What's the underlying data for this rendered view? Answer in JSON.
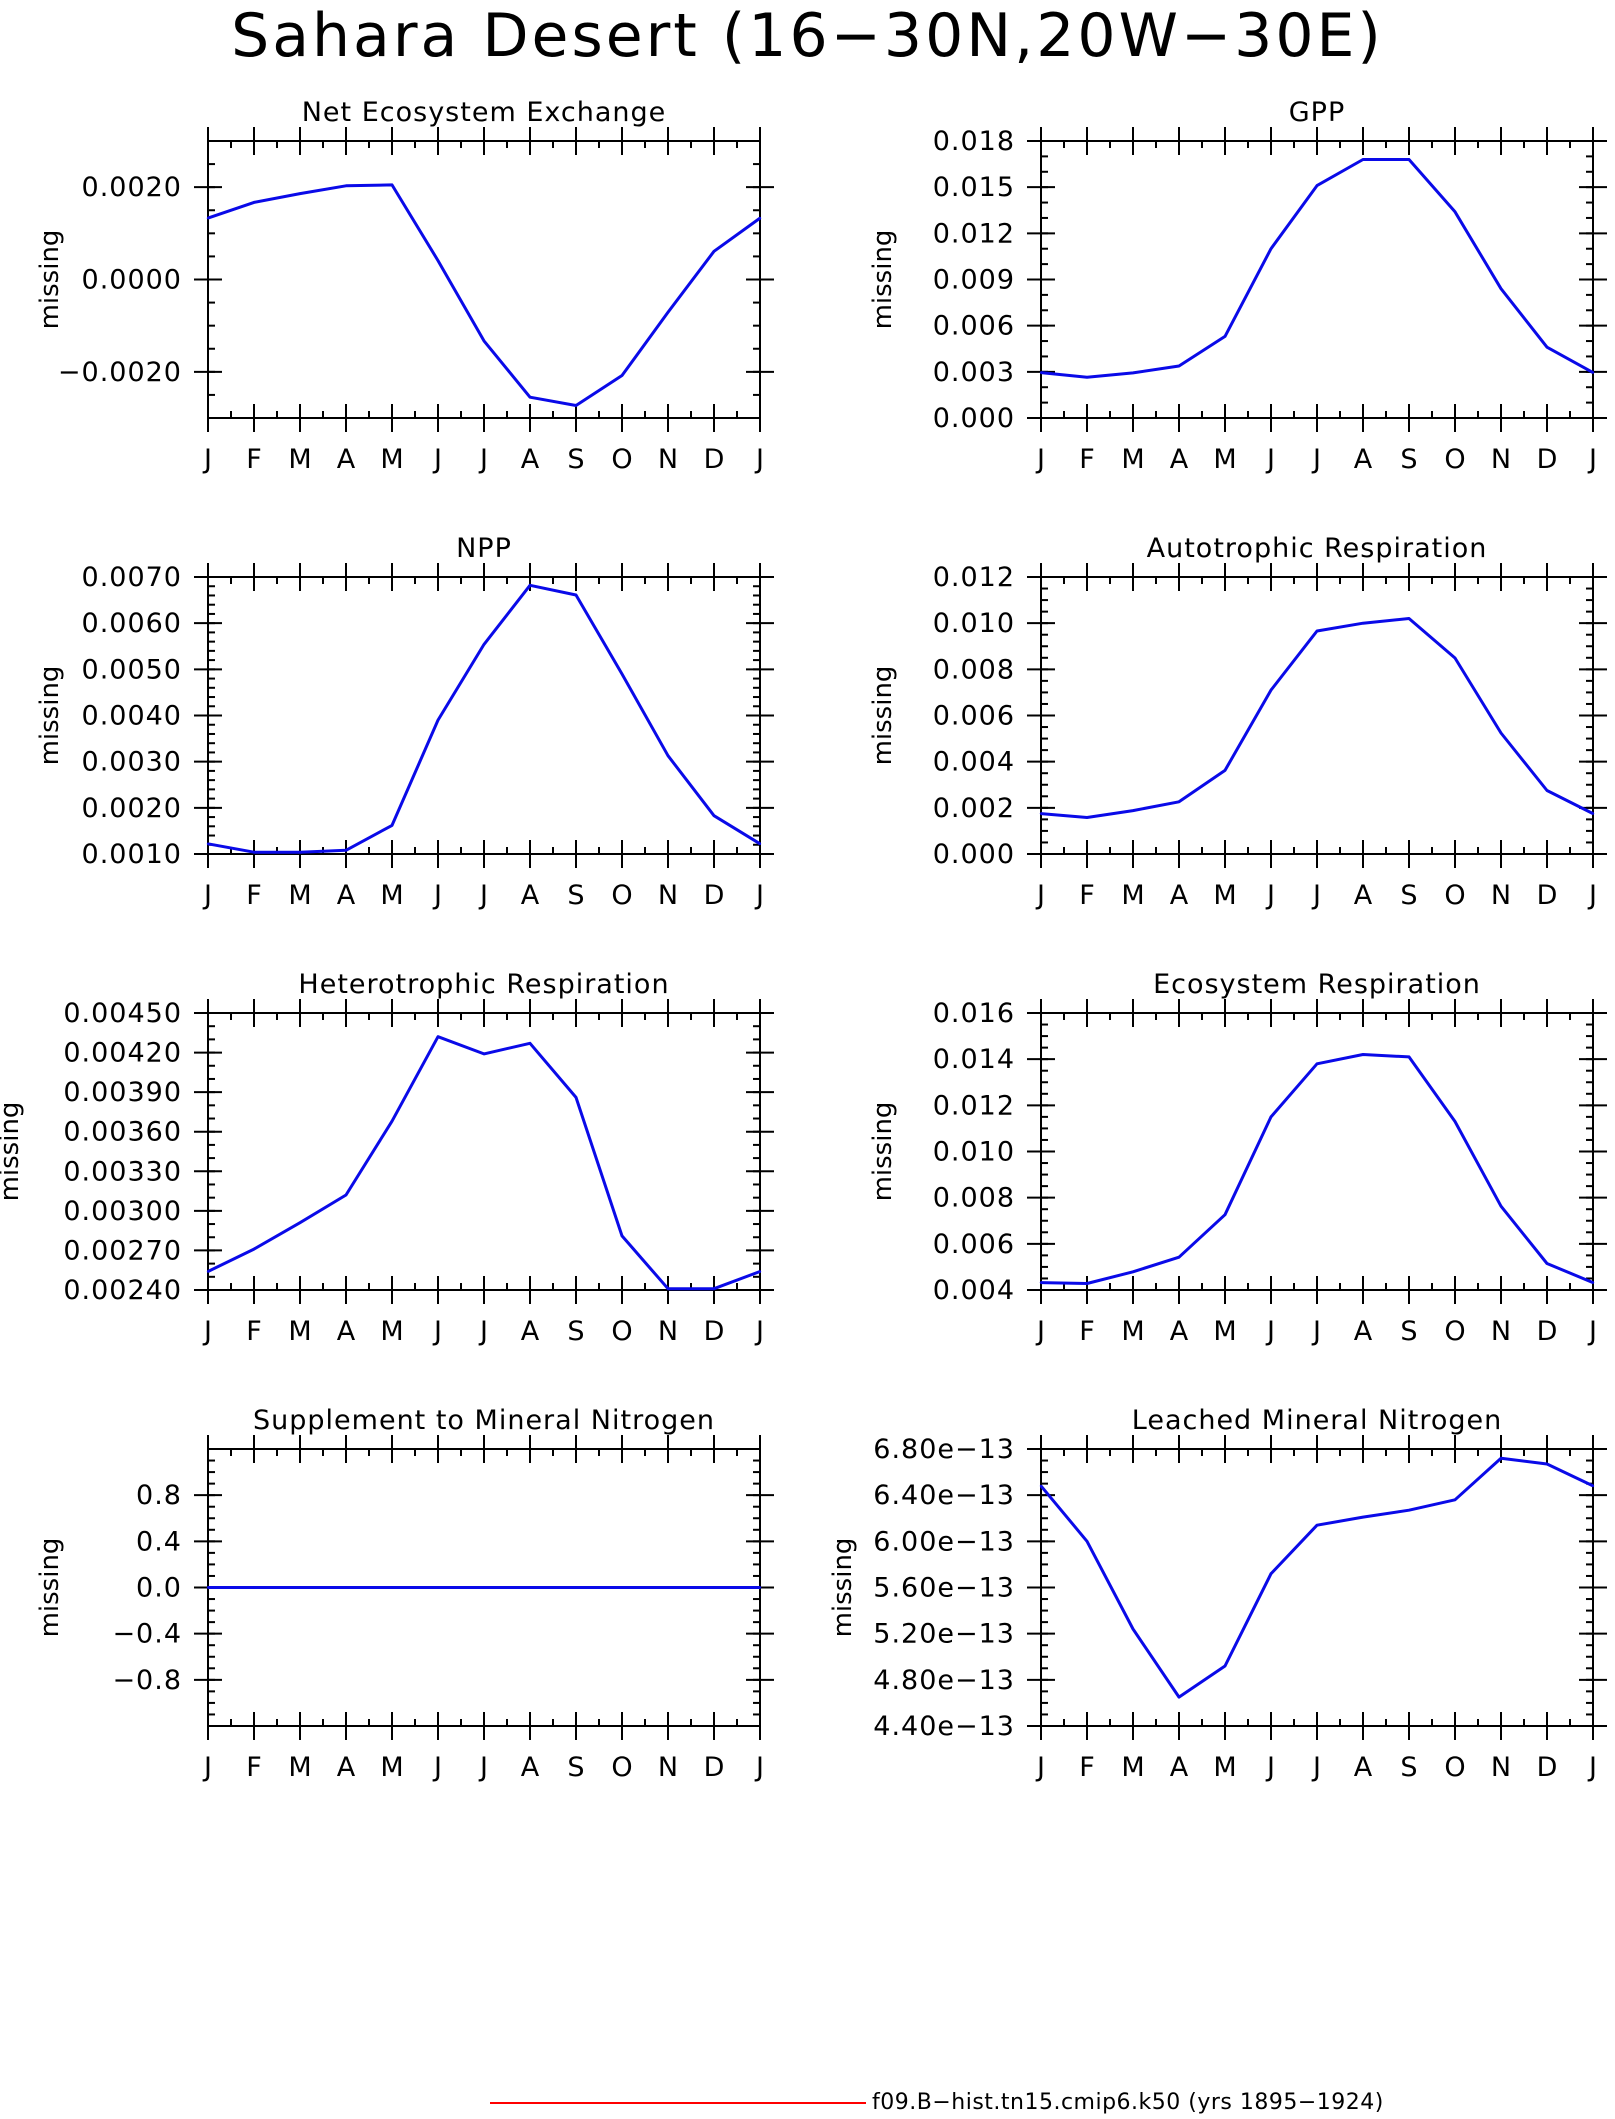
{
  "page_title": "Sahara Desert (16−30N,20W−30E)",
  "colors": {
    "series_line": "#0a0ae8",
    "legend_line": "#ff0000",
    "axis": "#000000"
  },
  "legend": {
    "label": "f09.B−hist.tn15.cmip6.k50 (yrs 1895−1924)"
  },
  "chart_data": [
    {
      "type": "line",
      "title": "Net Ecosystem Exchange",
      "ylabel": "missing",
      "x": [
        "J",
        "F",
        "M",
        "A",
        "M",
        "J",
        "J",
        "A",
        "S",
        "O",
        "N",
        "D",
        "J"
      ],
      "yticks": [
        "0.0020",
        "0.0000",
        "−0.0020"
      ],
      "ytick_values": [
        0.002,
        0.0,
        -0.002
      ],
      "ylim": [
        -0.003,
        0.003
      ],
      "minor_step": 0.0005,
      "values": [
        0.00133,
        0.00167,
        0.00186,
        0.00203,
        0.00205,
        0.00041,
        -0.00133,
        -0.00255,
        -0.00273,
        -0.00208,
        -0.00071,
        0.00061,
        0.00133
      ]
    },
    {
      "type": "line",
      "title": "GPP",
      "ylabel": "missing",
      "x": [
        "J",
        "F",
        "M",
        "A",
        "M",
        "J",
        "J",
        "A",
        "S",
        "O",
        "N",
        "D",
        "J"
      ],
      "yticks": [
        "0.018",
        "0.015",
        "0.012",
        "0.009",
        "0.006",
        "0.003",
        "0.000"
      ],
      "ytick_values": [
        0.018,
        0.015,
        0.012,
        0.009,
        0.006,
        0.003,
        0.0
      ],
      "ylim": [
        0.0,
        0.018
      ],
      "minor_step": 0.001,
      "values": [
        0.00295,
        0.00265,
        0.00293,
        0.00338,
        0.0053,
        0.011,
        0.0151,
        0.0168,
        0.0168,
        0.0134,
        0.0084,
        0.0046,
        0.00295
      ]
    },
    {
      "type": "line",
      "title": "NPP",
      "ylabel": "missing",
      "x": [
        "J",
        "F",
        "M",
        "A",
        "M",
        "J",
        "J",
        "A",
        "S",
        "O",
        "N",
        "D",
        "J"
      ],
      "yticks": [
        "0.0070",
        "0.0060",
        "0.0050",
        "0.0040",
        "0.0030",
        "0.0020",
        "0.0010"
      ],
      "ytick_values": [
        0.007,
        0.006,
        0.005,
        0.004,
        0.003,
        0.002,
        0.001
      ],
      "ylim": [
        0.001,
        0.007
      ],
      "minor_step": 0.0002,
      "values": [
        0.00122,
        0.00104,
        0.00104,
        0.00108,
        0.00162,
        0.0039,
        0.00554,
        0.00682,
        0.00661,
        0.0049,
        0.00313,
        0.00183,
        0.00122
      ]
    },
    {
      "type": "line",
      "title": "Autotrophic Respiration",
      "ylabel": "missing",
      "x": [
        "J",
        "F",
        "M",
        "A",
        "M",
        "J",
        "J",
        "A",
        "S",
        "O",
        "N",
        "D",
        "J"
      ],
      "yticks": [
        "0.012",
        "0.010",
        "0.008",
        "0.006",
        "0.004",
        "0.002",
        "0.000"
      ],
      "ytick_values": [
        0.012,
        0.01,
        0.008,
        0.006,
        0.004,
        0.002,
        0.0
      ],
      "ylim": [
        0.0,
        0.012
      ],
      "minor_step": 0.0005,
      "values": [
        0.00175,
        0.00158,
        0.00188,
        0.00226,
        0.00362,
        0.0071,
        0.00966,
        0.01,
        0.0102,
        0.00849,
        0.00524,
        0.00275,
        0.00175
      ]
    },
    {
      "type": "line",
      "title": "Heterotrophic Respiration",
      "ylabel": "missing",
      "x": [
        "J",
        "F",
        "M",
        "A",
        "M",
        "J",
        "J",
        "A",
        "S",
        "O",
        "N",
        "D",
        "J"
      ],
      "yticks": [
        "0.00450",
        "0.00420",
        "0.00390",
        "0.00360",
        "0.00330",
        "0.00300",
        "0.00270",
        "0.00240"
      ],
      "ytick_values": [
        0.0045,
        0.0042,
        0.0039,
        0.0036,
        0.0033,
        0.003,
        0.0027,
        0.0024
      ],
      "ylim": [
        0.0024,
        0.0045
      ],
      "minor_step": 0.0001,
      "values": [
        0.00254,
        0.00271,
        0.00291,
        0.00312,
        0.00368,
        0.00432,
        0.00419,
        0.00427,
        0.00386,
        0.00281,
        0.00241,
        0.00241,
        0.00254
      ]
    },
    {
      "type": "line",
      "title": "Ecosystem Respiration",
      "ylabel": "missing",
      "x": [
        "J",
        "F",
        "M",
        "A",
        "M",
        "J",
        "J",
        "A",
        "S",
        "O",
        "N",
        "D",
        "J"
      ],
      "yticks": [
        "0.016",
        "0.014",
        "0.012",
        "0.010",
        "0.008",
        "0.006",
        "0.004"
      ],
      "ytick_values": [
        0.016,
        0.014,
        0.012,
        0.01,
        0.008,
        0.006,
        0.004
      ],
      "ylim": [
        0.004,
        0.016
      ],
      "minor_step": 0.0005,
      "values": [
        0.00432,
        0.00428,
        0.00479,
        0.00542,
        0.00726,
        0.0115,
        0.0138,
        0.0142,
        0.0141,
        0.0113,
        0.00763,
        0.00515,
        0.00432
      ]
    },
    {
      "type": "line",
      "title": "Supplement to Mineral Nitrogen",
      "ylabel": "missing",
      "x": [
        "J",
        "F",
        "M",
        "A",
        "M",
        "J",
        "J",
        "A",
        "S",
        "O",
        "N",
        "D",
        "J"
      ],
      "yticks": [
        "0.8",
        "0.4",
        "0.0",
        "−0.4",
        "−0.8"
      ],
      "ytick_values": [
        0.8,
        0.4,
        0.0,
        -0.4,
        -0.8
      ],
      "ylim": [
        -1.2,
        1.2
      ],
      "minor_step": 0.1,
      "values": [
        0,
        0,
        0,
        0,
        0,
        0,
        0,
        0,
        0,
        0,
        0,
        0,
        0
      ]
    },
    {
      "type": "line",
      "title": "Leached Mineral Nitrogen",
      "ylabel": "missing",
      "x": [
        "J",
        "F",
        "M",
        "A",
        "M",
        "J",
        "J",
        "A",
        "S",
        "O",
        "N",
        "D",
        "J"
      ],
      "yticks": [
        "6.80e−13",
        "6.40e−13",
        "6.00e−13",
        "5.60e−13",
        "5.20e−13",
        "4.80e−13",
        "4.40e−13"
      ],
      "ytick_values": [
        6.8e-13,
        6.4e-13,
        6e-13,
        5.6e-13,
        5.2e-13,
        4.8e-13,
        4.4e-13
      ],
      "ylim": [
        4.4e-13,
        6.8e-13
      ],
      "minor_step": 1e-14,
      "values": [
        6.48e-13,
        6e-13,
        5.24e-13,
        4.65e-13,
        4.92e-13,
        5.72e-13,
        6.14e-13,
        6.21e-13,
        6.27e-13,
        6.36e-13,
        6.72e-13,
        6.67e-13,
        6.48e-13
      ]
    }
  ]
}
